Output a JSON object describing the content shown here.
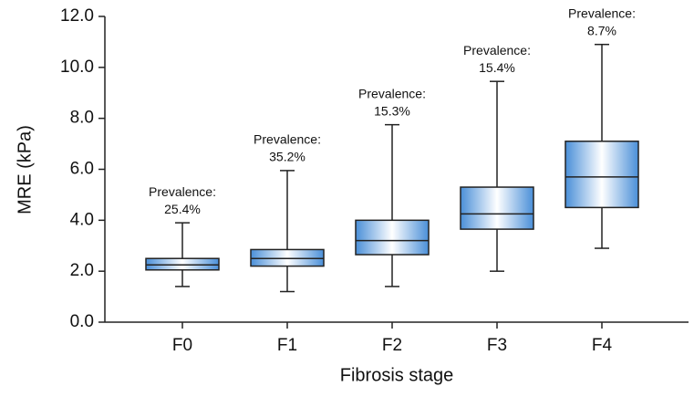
{
  "chart_data": {
    "type": "box",
    "y_label": "MRE (kPa)",
    "x_label": "Fibrosis stage",
    "categories": [
      "F0",
      "F1",
      "F2",
      "F3",
      "F4"
    ],
    "boxes": [
      {
        "min": 1.4,
        "q1": 2.05,
        "median": 2.25,
        "q3": 2.5,
        "max": 3.9
      },
      {
        "min": 1.2,
        "q1": 2.2,
        "median": 2.5,
        "q3": 2.85,
        "max": 5.95
      },
      {
        "min": 1.4,
        "q1": 2.65,
        "median": 3.2,
        "q3": 4.0,
        "max": 7.75
      },
      {
        "min": 2.0,
        "q1": 3.65,
        "median": 4.25,
        "q3": 5.3,
        "max": 9.45
      },
      {
        "min": 2.9,
        "q1": 4.5,
        "median": 5.7,
        "q3": 7.1,
        "max": 10.9
      }
    ],
    "annotations": [
      [
        "Prevalence:",
        "25.4%"
      ],
      [
        "Prevalence:",
        "35.2%"
      ],
      [
        "Prevalence:",
        "15.3%"
      ],
      [
        "Prevalence:",
        "15.4%"
      ],
      [
        "Prevalence:",
        "8.7%"
      ]
    ],
    "color": "#4a8fd8",
    "ylim": [
      0,
      12
    ],
    "yticks": [
      {
        "value": 0,
        "label": "0.0"
      },
      {
        "value": 2,
        "label": "2.0"
      },
      {
        "value": 4,
        "label": "4.0"
      },
      {
        "value": 6,
        "label": "6.0"
      },
      {
        "value": 8,
        "label": "8.0"
      },
      {
        "value": 10,
        "label": "10.0"
      },
      {
        "value": 12,
        "label": "12.0"
      }
    ]
  }
}
